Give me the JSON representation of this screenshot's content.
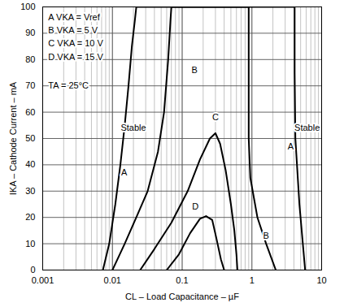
{
  "chart_data": {
    "type": "line",
    "x_label": "CL – Load Capacitance – µF",
    "y_label": "IKA – Cathode Current – mA",
    "log": "x",
    "grid": true,
    "xlim": [
      0.001,
      10
    ],
    "ylim": [
      0,
      100
    ],
    "xticks": [
      0.001,
      0.01,
      0.1,
      1,
      10
    ],
    "yticks": [
      0,
      10,
      20,
      30,
      40,
      50,
      60,
      70,
      80,
      90,
      100
    ],
    "series": [
      {
        "name": "A",
        "color": "#000000",
        "x": [
          0.0073,
          0.009,
          0.011,
          0.013,
          0.015,
          0.017,
          0.019,
          0.021,
          0.022,
          4.1,
          4.1,
          4.2,
          4.8,
          5.8
        ],
        "values": [
          0,
          10,
          25,
          40,
          55,
          70,
          85,
          95,
          100,
          100,
          75,
          50,
          25,
          0
        ]
      },
      {
        "name": "B",
        "color": "#000000",
        "x": [
          0.01,
          0.015,
          0.022,
          0.032,
          0.045,
          0.055,
          0.063,
          0.068,
          0.07,
          0.9,
          0.9,
          0.95,
          1.2,
          1.6,
          2.2
        ],
        "values": [
          0,
          10,
          20,
          30,
          45,
          60,
          80,
          95,
          100,
          100,
          50,
          35,
          20,
          10,
          0
        ]
      },
      {
        "name": "C",
        "color": "#000000",
        "x": [
          0.025,
          0.04,
          0.07,
          0.12,
          0.18,
          0.25,
          0.3,
          0.35,
          0.42,
          0.5,
          0.56,
          0.6,
          0.62
        ],
        "values": [
          0,
          8,
          18,
          30,
          42,
          50,
          52,
          48,
          38,
          25,
          15,
          6,
          0
        ]
      },
      {
        "name": "D",
        "color": "#000000",
        "x": [
          0.06,
          0.09,
          0.13,
          0.18,
          0.22,
          0.27,
          0.31,
          0.36,
          0.4
        ],
        "values": [
          0,
          6,
          14,
          19.5,
          20.5,
          19,
          12,
          4,
          0
        ]
      }
    ],
    "annotations": [
      {
        "text": "A VKA = Vref",
        "x": 0.0012,
        "y": 96
      },
      {
        "text": "B VKA = 5 V",
        "x": 0.0012,
        "y": 91
      },
      {
        "text": "C VKA = 10 V",
        "x": 0.0012,
        "y": 86
      },
      {
        "text": "D VKA = 15 V",
        "x": 0.0012,
        "y": 81
      },
      {
        "text": "TA = 25°C",
        "x": 0.0012,
        "y": 70
      },
      {
        "text": "Stable",
        "x": 0.02,
        "y": 54
      },
      {
        "text": "Stable",
        "x": 6.2,
        "y": 54
      },
      {
        "text": "A",
        "x": 0.0147,
        "y": 37
      },
      {
        "text": "A",
        "x": 3.6,
        "y": 47
      },
      {
        "text": "B",
        "x": 0.15,
        "y": 76
      },
      {
        "text": "B",
        "x": 1.6,
        "y": 13
      },
      {
        "text": "C",
        "x": 0.3,
        "y": 58
      },
      {
        "text": "D",
        "x": 0.155,
        "y": 24
      }
    ]
  }
}
